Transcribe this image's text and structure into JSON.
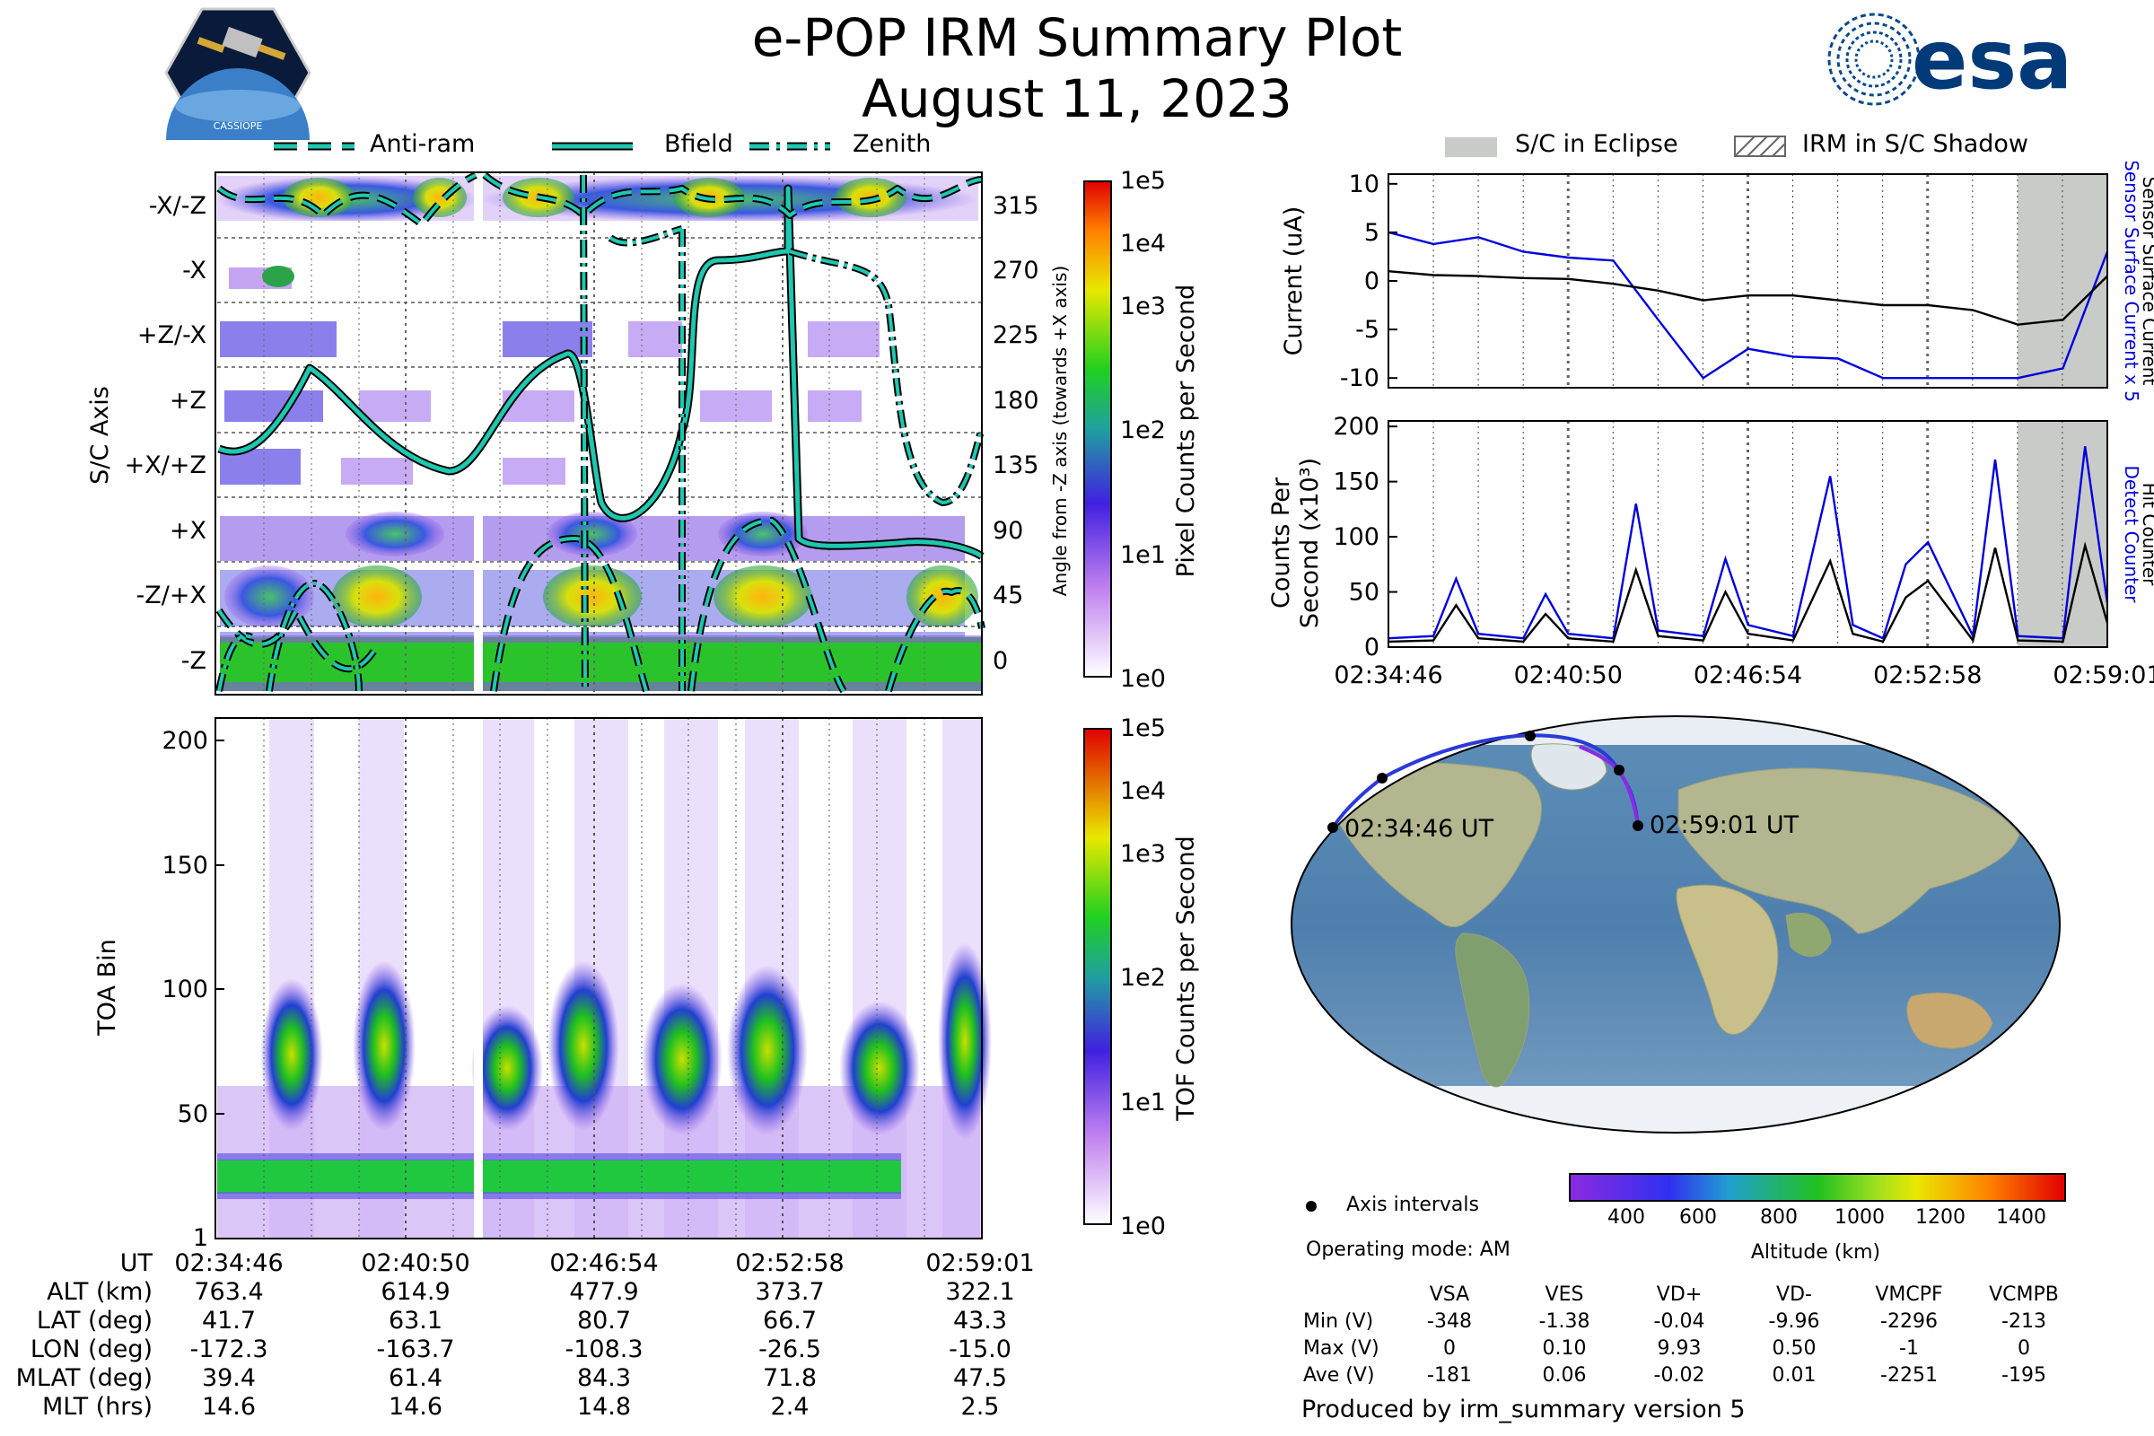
{
  "header": {
    "title": "e-POP IRM Summary Plot",
    "date": "August 11, 2023",
    "left_logo_text": "CASSIOPE",
    "right_logo_text": "esa"
  },
  "left_legend": {
    "items": [
      "Anti-ram",
      "Bfield",
      "Zenith"
    ]
  },
  "right_legend": {
    "items": [
      "S/C in Eclipse",
      "IRM in S/C Shadow"
    ]
  },
  "sc_axis_panel": {
    "ylabel": "S/C Axis",
    "axis_labels": [
      "-X/-Z",
      "-X",
      "+Z/-X",
      "+Z",
      "+X/+Z",
      "+X",
      "-Z/+X",
      "-Z"
    ],
    "right_ticks": [
      "315",
      "270",
      "225",
      "180",
      "135",
      "90",
      "45",
      "0"
    ],
    "right_label": "Angle from -Z axis (towards +X axis)",
    "colorbar_label": "Pixel Counts per Second",
    "colorbar_ticks": [
      "1e5",
      "1e4",
      "1e3",
      "1e2",
      "1e1",
      "1e0"
    ]
  },
  "toa_panel": {
    "ylabel": "TOA Bin",
    "yticks": [
      "200",
      "150",
      "100",
      "50",
      "1"
    ],
    "colorbar_label": "TOF Counts per Second",
    "colorbar_ticks": [
      "1e5",
      "1e4",
      "1e3",
      "1e2",
      "1e1",
      "1e0"
    ]
  },
  "ephemeris": {
    "row_labels": [
      "UT",
      "ALT (km)",
      "LAT (deg)",
      "LON (deg)",
      "MLAT (deg)",
      "MLT (hrs)"
    ],
    "columns": [
      [
        "02:34:46",
        "763.4",
        "41.7",
        "-172.3",
        "39.4",
        "14.6"
      ],
      [
        "02:40:50",
        "614.9",
        "63.1",
        "-163.7",
        "61.4",
        "14.6"
      ],
      [
        "02:46:54",
        "477.9",
        "80.7",
        "-108.3",
        "84.3",
        "14.8"
      ],
      [
        "02:52:58",
        "373.7",
        "66.7",
        "-26.5",
        "71.8",
        "2.4"
      ],
      [
        "02:59:01",
        "322.1",
        "43.3",
        "-15.0",
        "47.5",
        "2.5"
      ]
    ]
  },
  "chart_data": [
    {
      "type": "line",
      "title": "",
      "ylabel": "Current (uA)",
      "right_label_blue": "Sensor Surface Current x 5",
      "right_label_black": "Sensor Surface Current",
      "ylim": [
        -11,
        11
      ],
      "yticks": [
        "10",
        "5",
        "0",
        "-5",
        "-10"
      ],
      "x": [
        "02:34:46",
        "02:36:17",
        "02:37:48",
        "02:39:19",
        "02:40:50",
        "02:42:21",
        "02:43:52",
        "02:45:23",
        "02:46:54",
        "02:48:25",
        "02:49:56",
        "02:51:27",
        "02:52:58",
        "02:54:29",
        "02:56:00",
        "02:57:31",
        "02:59:01"
      ],
      "series": [
        {
          "name": "Sensor Surface Current x 5",
          "color": "#0000dd",
          "values": [
            5.0,
            3.8,
            4.5,
            3.0,
            2.4,
            2.1,
            -4.0,
            -10.0,
            -7.0,
            -7.8,
            -8.0,
            -10.0,
            -10.0,
            -10.0,
            -10.0,
            -9.0,
            3.0
          ]
        },
        {
          "name": "Sensor Surface Current",
          "color": "#000000",
          "values": [
            1.0,
            0.6,
            0.5,
            0.3,
            0.2,
            -0.3,
            -1.0,
            -2.0,
            -1.5,
            -1.5,
            -2.0,
            -2.5,
            -2.5,
            -3.0,
            -4.5,
            -4.0,
            0.5
          ]
        }
      ]
    },
    {
      "type": "line",
      "title": "",
      "ylabel": "Counts Per Second (x10^3)",
      "right_label_blue": "Detect Counter",
      "right_label_black": "Hit Counter",
      "ylim": [
        0,
        205
      ],
      "yticks": [
        "200",
        "150",
        "100",
        "50",
        "0"
      ],
      "xticks": [
        "02:34:46",
        "02:40:50",
        "02:46:54",
        "02:52:58",
        "02:59:01"
      ],
      "x": [
        "02:34:46",
        "02:36:17",
        "02:37:03",
        "02:37:48",
        "02:39:19",
        "02:40:04",
        "02:40:50",
        "02:42:21",
        "02:43:07",
        "02:43:52",
        "02:45:23",
        "02:46:08",
        "02:46:54",
        "02:48:25",
        "02:49:40",
        "02:50:26",
        "02:51:27",
        "02:52:13",
        "02:52:58",
        "02:54:29",
        "02:55:14",
        "02:56:00",
        "02:57:31",
        "02:58:16",
        "02:59:01"
      ],
      "series": [
        {
          "name": "Detect Counter",
          "color": "#0000dd",
          "values": [
            8,
            10,
            62,
            12,
            8,
            48,
            12,
            8,
            130,
            15,
            10,
            80,
            20,
            10,
            155,
            20,
            8,
            75,
            95,
            10,
            170,
            10,
            8,
            182,
            40
          ]
        },
        {
          "name": "Hit Counter",
          "color": "#000000",
          "values": [
            5,
            6,
            38,
            8,
            5,
            30,
            8,
            5,
            70,
            10,
            6,
            50,
            12,
            6,
            78,
            12,
            5,
            45,
            60,
            6,
            90,
            6,
            5,
            92,
            22
          ]
        }
      ]
    }
  ],
  "map": {
    "start_label": "02:34:46 UT",
    "end_label": "02:59:01 UT",
    "colorbar_label": "Altitude (km)",
    "colorbar_ticks": [
      "400",
      "600",
      "800",
      "1000",
      "1200",
      "1400"
    ],
    "axis_intervals_label": "Axis intervals",
    "operating_mode": "Operating mode: AM"
  },
  "voltage_table": {
    "headers": [
      "VSA",
      "VES",
      "VD+",
      "VD-",
      "VMCPF",
      "VCMPB"
    ],
    "rows": [
      {
        "label": "Min (V)",
        "values": [
          "-348",
          "-1.38",
          "-0.04",
          "-9.96",
          "-2296",
          "-213"
        ]
      },
      {
        "label": "Max (V)",
        "values": [
          "0",
          "0.10",
          "9.93",
          "0.50",
          "-1",
          "0"
        ]
      },
      {
        "label": "Ave (V)",
        "values": [
          "-181",
          "0.06",
          "-0.02",
          "0.01",
          "-2251",
          "-195"
        ]
      }
    ]
  },
  "footer": "Produced by irm_summary version 5",
  "colors": {
    "bfield": "#1ec8b0",
    "blue_line": "#0000dd",
    "eclipse": "#c9cbc9"
  }
}
